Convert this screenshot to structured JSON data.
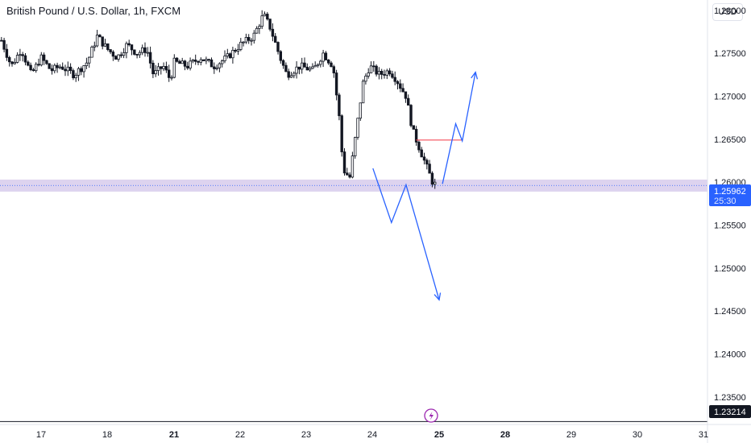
{
  "header": {
    "title": "British Pound / U.S. Dollar, 1h, FXCM",
    "currency_button": "USD"
  },
  "price_badge": {
    "price": "1.25962",
    "countdown": "25:30"
  },
  "bottom_badge": {
    "price": "1.23214"
  },
  "event_icon": "lightning-icon",
  "colors": {
    "candle": "#131722",
    "zone": "#b39ddb",
    "projection": "#2962ff",
    "level": "#f23645",
    "badge": "#2962ff"
  },
  "chart_data": {
    "type": "candlestick",
    "x_tick_labels": [
      "17",
      "18",
      "21",
      "22",
      "23",
      "24",
      "25",
      "28",
      "29",
      "30",
      "31"
    ],
    "x_tick_bold": [
      "21",
      "25",
      "28"
    ],
    "y_tick_labels": [
      "1.28000",
      "1.27500",
      "1.27000",
      "1.26500",
      "1.26000",
      "1.25500",
      "1.25000",
      "1.24500",
      "1.24000",
      "1.23500"
    ],
    "y_ticks": [
      1.28,
      1.275,
      1.27,
      1.265,
      1.26,
      1.255,
      1.25,
      1.245,
      1.24,
      1.235
    ],
    "ylim": [
      1.2318,
      1.2812
    ],
    "xlim": [
      16.4,
      31.0
    ],
    "price_path": [
      [
        16.4,
        1.2765
      ],
      [
        16.55,
        1.2735
      ],
      [
        16.7,
        1.2755
      ],
      [
        16.85,
        1.2725
      ],
      [
        17.0,
        1.2745
      ],
      [
        17.15,
        1.273
      ],
      [
        17.3,
        1.2735
      ],
      [
        17.5,
        1.2725
      ],
      [
        17.7,
        1.274
      ],
      [
        17.85,
        1.277
      ],
      [
        18.0,
        1.2755
      ],
      [
        18.15,
        1.2745
      ],
      [
        18.3,
        1.276
      ],
      [
        18.45,
        1.275
      ],
      [
        18.6,
        1.2755
      ],
      [
        18.7,
        1.2725
      ],
      [
        18.85,
        1.2735
      ],
      [
        18.95,
        1.272
      ],
      [
        19.1,
        1.2755
      ],
      [
        19.15,
        1.2745
      ],
      [
        21.0,
        1.274
      ],
      [
        21.2,
        1.2735
      ],
      [
        21.4,
        1.2745
      ],
      [
        21.6,
        1.2735
      ],
      [
        21.8,
        1.2745
      ],
      [
        22.0,
        1.276
      ],
      [
        22.2,
        1.277
      ],
      [
        22.35,
        1.2795
      ],
      [
        22.45,
        1.278
      ],
      [
        22.6,
        1.2745
      ],
      [
        22.7,
        1.2725
      ],
      [
        22.9,
        1.2735
      ],
      [
        23.1,
        1.273
      ],
      [
        23.25,
        1.275
      ],
      [
        23.4,
        1.2735
      ],
      [
        23.5,
        1.267
      ],
      [
        23.55,
        1.2615
      ],
      [
        23.65,
        1.2605
      ],
      [
        23.75,
        1.266
      ],
      [
        23.85,
        1.2715
      ],
      [
        23.95,
        1.2735
      ],
      [
        24.1,
        1.2725
      ],
      [
        24.25,
        1.273
      ],
      [
        24.35,
        1.272
      ],
      [
        24.5,
        1.27
      ],
      [
        24.6,
        1.266
      ],
      [
        24.7,
        1.264
      ],
      [
        24.8,
        1.262
      ],
      [
        24.9,
        1.26
      ],
      [
        24.96,
        1.2596
      ]
    ],
    "current_price": 1.25962,
    "zone": [
      1.2589,
      1.2603
    ],
    "horizontal_level": {
      "price": 1.2649,
      "from": 24.65,
      "to": 25.35
    },
    "bottom_level": 1.23214,
    "projection_down": [
      [
        24.0,
        1.2616
      ],
      [
        24.28,
        1.2553
      ],
      [
        24.5,
        1.2597
      ],
      [
        25.0,
        1.2463
      ]
    ],
    "projection_up": [
      [
        25.05,
        1.2598
      ],
      [
        25.25,
        1.2668
      ],
      [
        25.35,
        1.2648
      ],
      [
        25.55,
        1.2728
      ]
    ],
    "grid": false
  }
}
